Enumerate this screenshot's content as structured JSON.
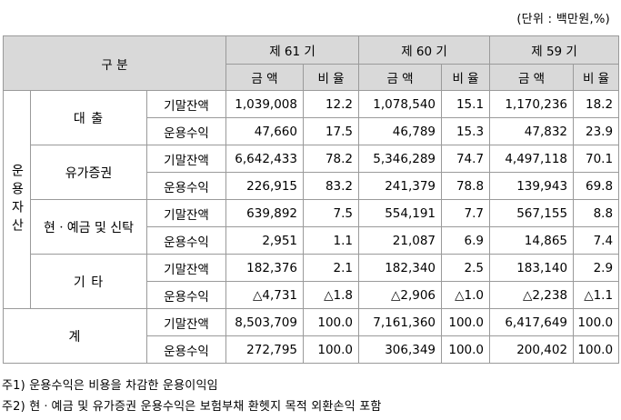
{
  "unit_note": "(단위 : 백만원,%)",
  "header": {
    "category": "구 분",
    "periods": [
      "제 61 기",
      "제 60 기",
      "제 59 기"
    ],
    "amount_label": "금 액",
    "ratio_label": "비 율"
  },
  "row_group_label": "운용자산",
  "groups": [
    {
      "name": "대 출",
      "rows": [
        {
          "item": "기말잔액",
          "values": [
            "1,039,008",
            "12.2",
            "1,078,540",
            "15.1",
            "1,170,236",
            "18.2"
          ]
        },
        {
          "item": "운용수익",
          "values": [
            "47,660",
            "17.5",
            "46,789",
            "15.3",
            "47,832",
            "23.9"
          ]
        }
      ]
    },
    {
      "name": "유가증권",
      "rows": [
        {
          "item": "기말잔액",
          "values": [
            "6,642,433",
            "78.2",
            "5,346,289",
            "74.7",
            "4,497,118",
            "70.1"
          ]
        },
        {
          "item": "운용수익",
          "values": [
            "226,915",
            "83.2",
            "241,379",
            "78.8",
            "139,943",
            "69.8"
          ]
        }
      ]
    },
    {
      "name": "현ㆍ예금 및 신탁",
      "rows": [
        {
          "item": "기말잔액",
          "values": [
            "639,892",
            "7.5",
            "554,191",
            "7.7",
            "567,155",
            "8.8"
          ]
        },
        {
          "item": "운용수익",
          "values": [
            "2,951",
            "1.1",
            "21,087",
            "6.9",
            "14,865",
            "7.4"
          ]
        }
      ]
    },
    {
      "name": "기 타",
      "rows": [
        {
          "item": "기말잔액",
          "values": [
            "182,376",
            "2.1",
            "182,340",
            "2.5",
            "183,140",
            "2.9"
          ]
        },
        {
          "item": "운용수익",
          "values": [
            "△4,731",
            "△1.8",
            "△2,906",
            "△1.0",
            "△2,238",
            "△1.1"
          ]
        }
      ]
    },
    {
      "name": "계",
      "rows": [
        {
          "item": "기말잔액",
          "values": [
            "8,503,709",
            "100.0",
            "7,161,360",
            "100.0",
            "6,417,649",
            "100.0"
          ]
        },
        {
          "item": "운용수익",
          "values": [
            "272,795",
            "100.0",
            "306,349",
            "100.0",
            "200,402",
            "100.0"
          ]
        }
      ]
    }
  ],
  "footnotes": [
    "주1) 운용수익은 비용을 차감한 운용이익임",
    "주2) 현ㆍ예금 및 유가증권 운용수익은 보험부채 환헷지 목적 외환손익 포함"
  ]
}
